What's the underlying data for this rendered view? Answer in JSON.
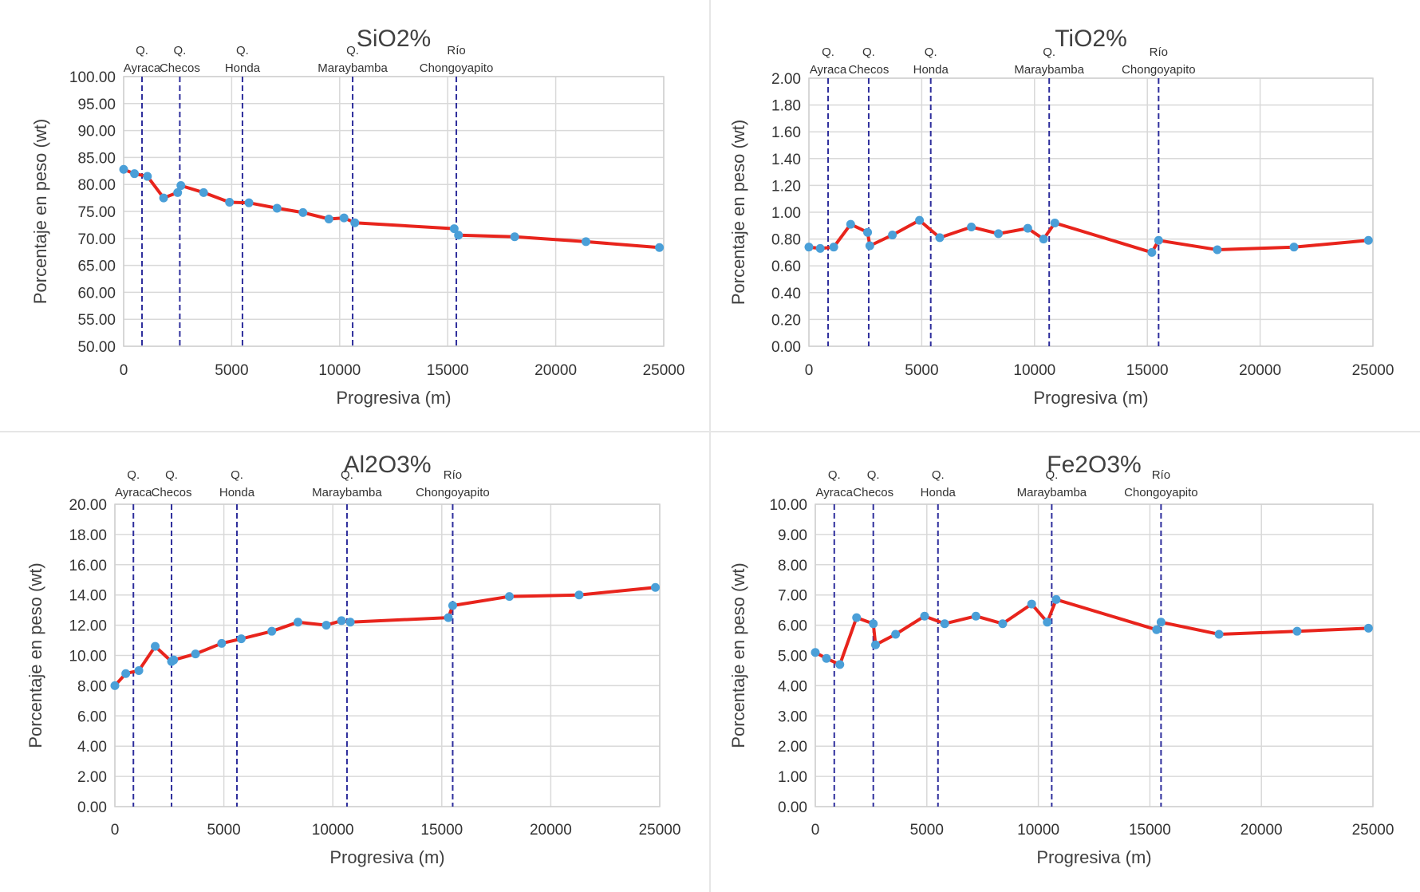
{
  "chart_data": [
    {
      "type": "line",
      "title": "SiO2%",
      "xlabel": "Progresiva (m)",
      "ylabel": "Porcentaje en peso (wt)",
      "xlim": [
        0,
        25000
      ],
      "ylim": [
        50,
        100
      ],
      "xticks": [
        0,
        5000,
        10000,
        15000,
        20000,
        25000
      ],
      "yticks": [
        50,
        55,
        60,
        65,
        70,
        75,
        80,
        85,
        90,
        95,
        100
      ],
      "ytick_decimals": 2,
      "grid": true,
      "series_color": "#e8241c",
      "marker_color": "#4a9fd8",
      "guide_color": "#2e2e9c",
      "markers": [
        {
          "x": 850,
          "line1": "Q.",
          "line2": "Ayraca"
        },
        {
          "x": 2600,
          "line1": "Q.",
          "line2": "Checos"
        },
        {
          "x": 5500,
          "line1": "Q.",
          "line2": "Honda"
        },
        {
          "x": 10600,
          "line1": "Q.",
          "line2": "Maraybamba"
        },
        {
          "x": 15400,
          "line1": "Río",
          "line2": "Chongoyapito"
        }
      ],
      "points": [
        {
          "x": 0,
          "y": 82.8
        },
        {
          "x": 500,
          "y": 82.0
        },
        {
          "x": 1100,
          "y": 81.5
        },
        {
          "x": 1850,
          "y": 77.5
        },
        {
          "x": 2500,
          "y": 78.5
        },
        {
          "x": 2650,
          "y": 79.8
        },
        {
          "x": 3700,
          "y": 78.5
        },
        {
          "x": 4900,
          "y": 76.7
        },
        {
          "x": 5800,
          "y": 76.6
        },
        {
          "x": 7100,
          "y": 75.6
        },
        {
          "x": 8300,
          "y": 74.8
        },
        {
          "x": 9500,
          "y": 73.6
        },
        {
          "x": 10200,
          "y": 73.8
        },
        {
          "x": 10700,
          "y": 72.9
        },
        {
          "x": 15300,
          "y": 71.8
        },
        {
          "x": 15500,
          "y": 70.6
        },
        {
          "x": 18100,
          "y": 70.3
        },
        {
          "x": 21400,
          "y": 69.4
        },
        {
          "x": 24800,
          "y": 68.3
        }
      ]
    },
    {
      "type": "line",
      "title": "TiO2%",
      "xlabel": "Progresiva (m)",
      "ylabel": "Porcentaje en peso (wt)",
      "xlim": [
        0,
        25000
      ],
      "ylim": [
        0,
        2
      ],
      "xticks": [
        0,
        5000,
        10000,
        15000,
        20000,
        25000
      ],
      "yticks": [
        0,
        0.2,
        0.4,
        0.6,
        0.8,
        1.0,
        1.2,
        1.4,
        1.6,
        1.8,
        2.0
      ],
      "ytick_decimals": 2,
      "grid": true,
      "series_color": "#e8241c",
      "marker_color": "#4a9fd8",
      "guide_color": "#2e2e9c",
      "markers": [
        {
          "x": 850,
          "line1": "Q.",
          "line2": "Ayraca"
        },
        {
          "x": 2650,
          "line1": "Q.",
          "line2": "Checos"
        },
        {
          "x": 5400,
          "line1": "Q.",
          "line2": "Honda"
        },
        {
          "x": 10650,
          "line1": "Q.",
          "line2": "Maraybamba"
        },
        {
          "x": 15500,
          "line1": "Río",
          "line2": "Chongoyapito"
        }
      ],
      "points": [
        {
          "x": 0,
          "y": 0.74
        },
        {
          "x": 500,
          "y": 0.73
        },
        {
          "x": 1100,
          "y": 0.74
        },
        {
          "x": 1850,
          "y": 0.91
        },
        {
          "x": 2600,
          "y": 0.85
        },
        {
          "x": 2700,
          "y": 0.75
        },
        {
          "x": 3700,
          "y": 0.83
        },
        {
          "x": 4900,
          "y": 0.94
        },
        {
          "x": 5800,
          "y": 0.81
        },
        {
          "x": 7200,
          "y": 0.89
        },
        {
          "x": 8400,
          "y": 0.84
        },
        {
          "x": 9700,
          "y": 0.88
        },
        {
          "x": 10400,
          "y": 0.8
        },
        {
          "x": 10900,
          "y": 0.92
        },
        {
          "x": 15200,
          "y": 0.7
        },
        {
          "x": 15500,
          "y": 0.79
        },
        {
          "x": 18100,
          "y": 0.72
        },
        {
          "x": 21500,
          "y": 0.74
        },
        {
          "x": 24800,
          "y": 0.79
        }
      ]
    },
    {
      "type": "line",
      "title": "Al2O3%",
      "xlabel": "Progresiva (m)",
      "ylabel": "Porcentaje en peso (wt)",
      "xlim": [
        0,
        25000
      ],
      "ylim": [
        0,
        20
      ],
      "xticks": [
        0,
        5000,
        10000,
        15000,
        20000,
        25000
      ],
      "yticks": [
        0,
        2,
        4,
        6,
        8,
        10,
        12,
        14,
        16,
        18,
        20
      ],
      "ytick_decimals": 2,
      "grid": true,
      "series_color": "#e8241c",
      "marker_color": "#4a9fd8",
      "guide_color": "#2e2e9c",
      "markers": [
        {
          "x": 850,
          "line1": "Q.",
          "line2": "Ayraca"
        },
        {
          "x": 2600,
          "line1": "Q.",
          "line2": "Checos"
        },
        {
          "x": 5600,
          "line1": "Q.",
          "line2": "Honda"
        },
        {
          "x": 10650,
          "line1": "Q.",
          "line2": "Maraybamba"
        },
        {
          "x": 15500,
          "line1": "Río",
          "line2": "Chongoyapito"
        }
      ],
      "points": [
        {
          "x": 0,
          "y": 8.0
        },
        {
          "x": 500,
          "y": 8.8
        },
        {
          "x": 1100,
          "y": 9.0
        },
        {
          "x": 1850,
          "y": 10.6
        },
        {
          "x": 2600,
          "y": 9.6
        },
        {
          "x": 2700,
          "y": 9.7
        },
        {
          "x": 3700,
          "y": 10.1
        },
        {
          "x": 4900,
          "y": 10.8
        },
        {
          "x": 5800,
          "y": 11.1
        },
        {
          "x": 7200,
          "y": 11.6
        },
        {
          "x": 8400,
          "y": 12.2
        },
        {
          "x": 9700,
          "y": 12.0
        },
        {
          "x": 10400,
          "y": 12.3
        },
        {
          "x": 10800,
          "y": 12.2
        },
        {
          "x": 15300,
          "y": 12.5
        },
        {
          "x": 15500,
          "y": 13.3
        },
        {
          "x": 18100,
          "y": 13.9
        },
        {
          "x": 21300,
          "y": 14.0
        },
        {
          "x": 24800,
          "y": 14.5
        }
      ]
    },
    {
      "type": "line",
      "title": "Fe2O3%",
      "xlabel": "Progresiva (m)",
      "ylabel": "Porcentaje en peso (wt)",
      "xlim": [
        0,
        25000
      ],
      "ylim": [
        0,
        10
      ],
      "xticks": [
        0,
        5000,
        10000,
        15000,
        20000,
        25000
      ],
      "yticks": [
        0,
        1,
        2,
        3,
        4,
        5,
        6,
        7,
        8,
        9,
        10
      ],
      "ytick_decimals": 2,
      "grid": true,
      "series_color": "#e8241c",
      "marker_color": "#4a9fd8",
      "guide_color": "#2e2e9c",
      "markers": [
        {
          "x": 850,
          "line1": "Q.",
          "line2": "Ayraca"
        },
        {
          "x": 2600,
          "line1": "Q.",
          "line2": "Checos"
        },
        {
          "x": 5500,
          "line1": "Q.",
          "line2": "Honda"
        },
        {
          "x": 10600,
          "line1": "Q.",
          "line2": "Maraybamba"
        },
        {
          "x": 15500,
          "line1": "Río",
          "line2": "Chongoyapito"
        }
      ],
      "points": [
        {
          "x": 0,
          "y": 5.1
        },
        {
          "x": 500,
          "y": 4.9
        },
        {
          "x": 1100,
          "y": 4.7
        },
        {
          "x": 1850,
          "y": 6.25
        },
        {
          "x": 2600,
          "y": 6.05
        },
        {
          "x": 2700,
          "y": 5.35
        },
        {
          "x": 3600,
          "y": 5.7
        },
        {
          "x": 4900,
          "y": 6.3
        },
        {
          "x": 5800,
          "y": 6.05
        },
        {
          "x": 7200,
          "y": 6.3
        },
        {
          "x": 8400,
          "y": 6.05
        },
        {
          "x": 9700,
          "y": 6.7
        },
        {
          "x": 10400,
          "y": 6.1
        },
        {
          "x": 10800,
          "y": 6.85
        },
        {
          "x": 15300,
          "y": 5.85
        },
        {
          "x": 15500,
          "y": 6.1
        },
        {
          "x": 18100,
          "y": 5.7
        },
        {
          "x": 21600,
          "y": 5.8
        },
        {
          "x": 24800,
          "y": 5.9
        }
      ]
    }
  ]
}
